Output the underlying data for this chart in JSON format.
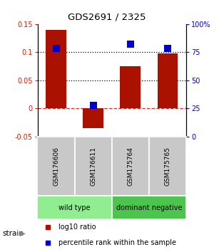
{
  "title": "GDS2691 / 2325",
  "samples": [
    "GSM176606",
    "GSM176611",
    "GSM175764",
    "GSM175765"
  ],
  "log10_ratio": [
    0.14,
    -0.035,
    0.075,
    0.098
  ],
  "percentile_rank": [
    78,
    28,
    82,
    78
  ],
  "groups": [
    {
      "label": "wild type",
      "samples": [
        0,
        1
      ],
      "color": "#90ee90"
    },
    {
      "label": "dominant negative",
      "samples": [
        2,
        3
      ],
      "color": "#4dc44d"
    }
  ],
  "group_label": "strain",
  "ylim_left": [
    -0.05,
    0.15
  ],
  "ylim_right": [
    0,
    100
  ],
  "yticks_left": [
    -0.05,
    0,
    0.05,
    0.1,
    0.15
  ],
  "yticks_right": [
    0,
    25,
    50,
    75,
    100
  ],
  "ytick_labels_right": [
    "0",
    "25",
    "50",
    "75",
    "100%"
  ],
  "hlines_dotted": [
    0.05,
    0.1
  ],
  "hline_dashed": 0,
  "bar_color": "#aa1100",
  "point_color": "#0000cc",
  "bar_width": 0.55,
  "point_size": 45,
  "left_tick_color": "#cc2200",
  "right_tick_color": "#0000cc",
  "legend_bar_label": "log10 ratio",
  "legend_point_label": "percentile rank within the sample",
  "background_color": "#ffffff",
  "sample_box_color": "#c8c8c8"
}
